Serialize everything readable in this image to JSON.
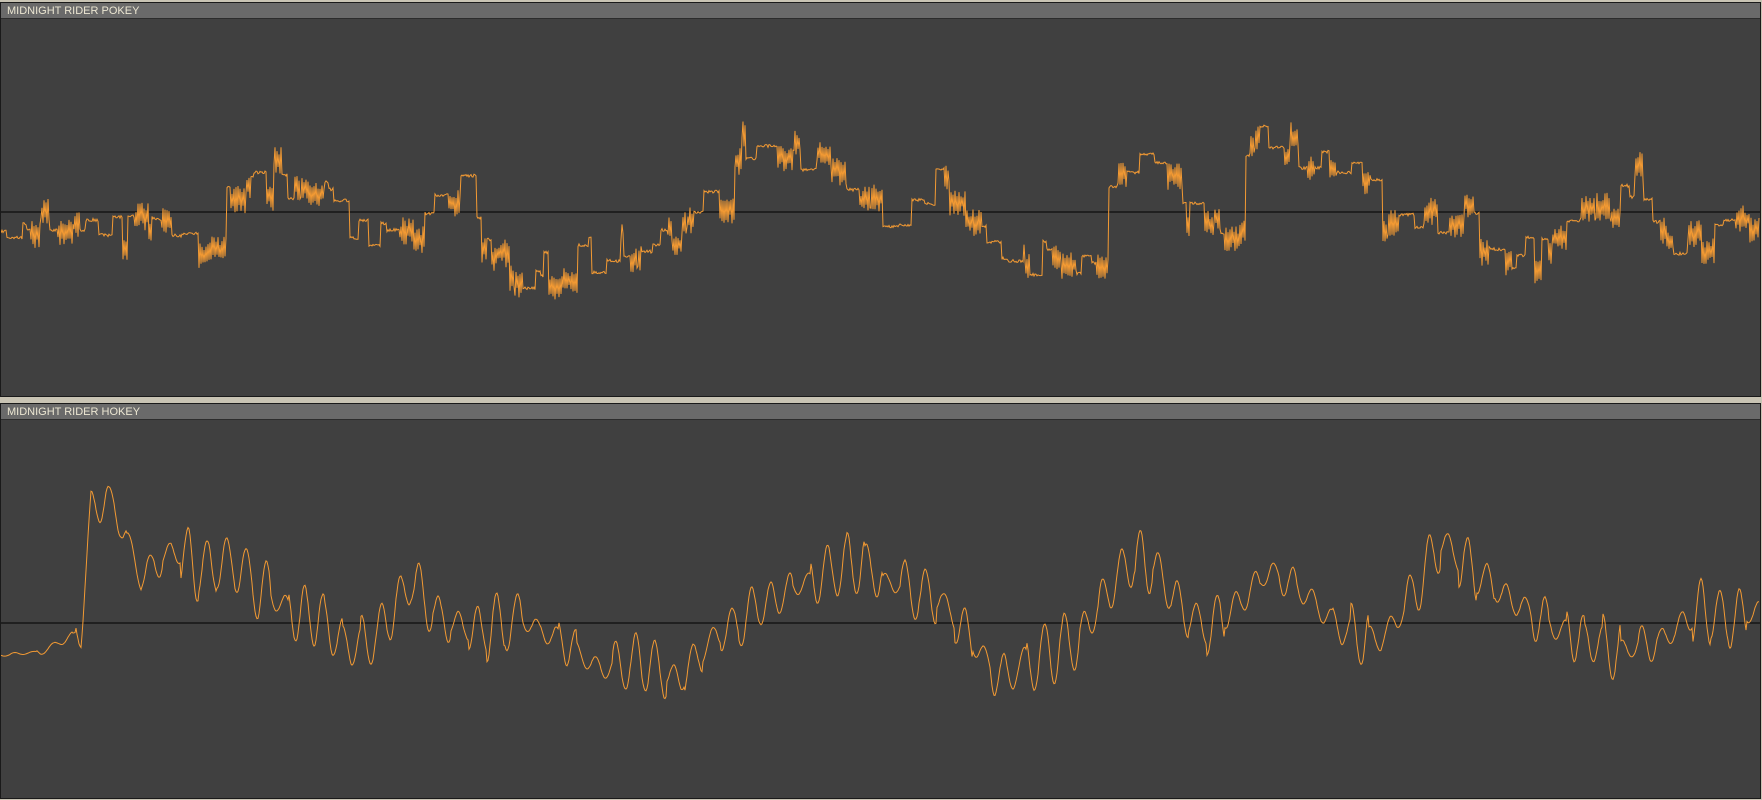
{
  "tracks": [
    {
      "name": "MIDNIGHT RIDER POKEY",
      "waveform_color": "#f39a33",
      "baseline_color": "#000000",
      "waveform_style": "square-wave"
    },
    {
      "name": "MIDNIGHT RIDER HOKEY",
      "waveform_color": "#f39a33",
      "baseline_color": "#000000",
      "waveform_style": "smooth"
    }
  ],
  "colors": {
    "panel_background": "#404040",
    "header_background": "#6a6a6a",
    "header_text": "#ebe6d2",
    "window_background": "#c9c4b4"
  }
}
